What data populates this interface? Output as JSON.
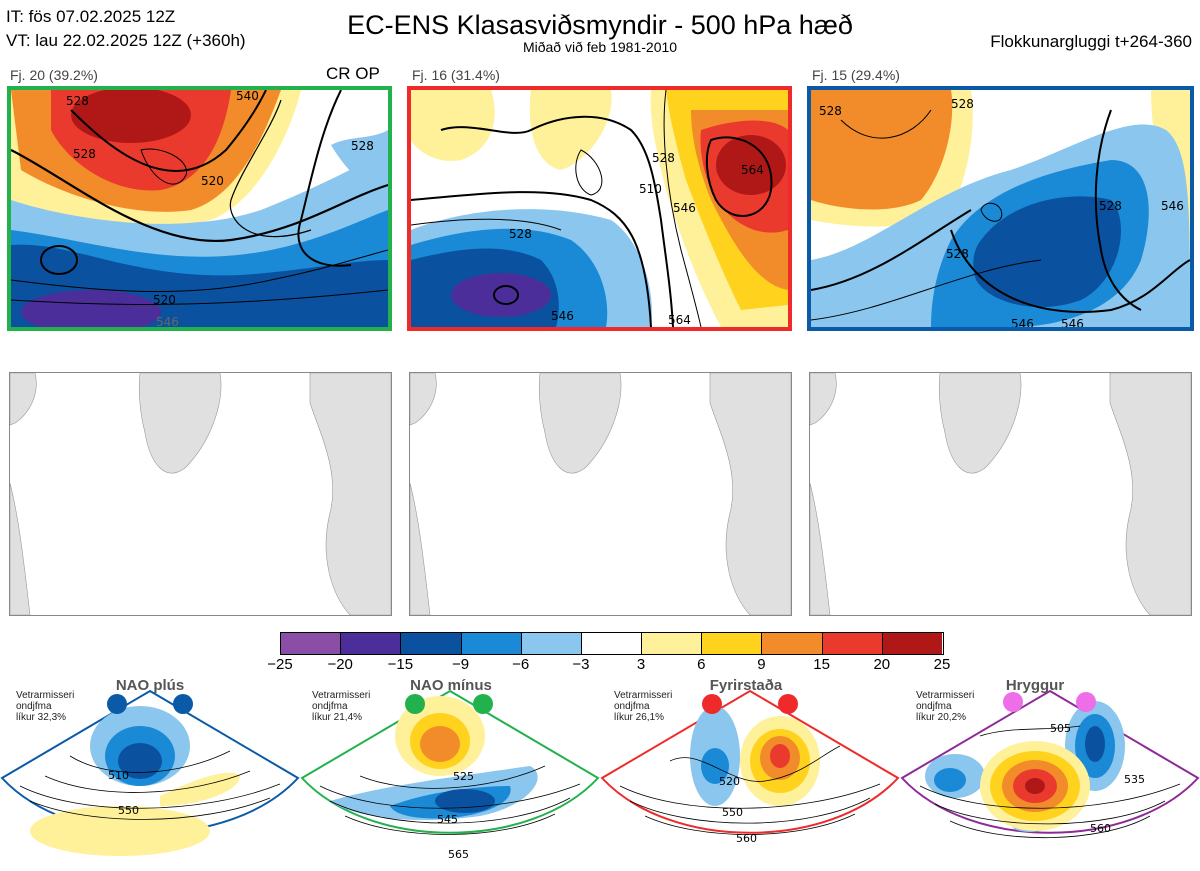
{
  "header": {
    "it": "IT: fös 07.02.2025 12Z",
    "vt": "VT: lau 22.02.2025 12Z  (+360h)",
    "title": "EC-ENS Klasasviðsmyndir - 500 hPa hæð",
    "subtitle": "Miðað við feb 1981-2010",
    "window": "Flokkunargluggi t+264-360"
  },
  "clusters": [
    {
      "label": "Fj. 20 (39.2%)",
      "tag": "CR OP",
      "color": "#22b14c",
      "contours": [
        "528",
        "528",
        "528",
        "520",
        "520",
        "540",
        "546"
      ]
    },
    {
      "label": "Fj. 16 (31.4%)",
      "tag": "",
      "color": "#ee2a2a",
      "contours": [
        "528",
        "510",
        "528",
        "546",
        "546",
        "564",
        "564"
      ]
    },
    {
      "label": "Fj. 15 (29.4%)",
      "tag": "",
      "color": "#0a5aa8",
      "contours": [
        "528",
        "528",
        "528",
        "528",
        "546",
        "546",
        "546"
      ]
    }
  ],
  "colorbar": {
    "ticks": [
      "−25",
      "−20",
      "−15",
      "−9",
      "−6",
      "−3",
      "3",
      "6",
      "9",
      "15",
      "20",
      "25"
    ],
    "colors": [
      "#8a4ea6",
      "#4b2e9a",
      "#0a52a0",
      "#1a8ad6",
      "#8ac6ee",
      "#ffffff",
      "#fff09a",
      "#ffd21e",
      "#f28c2a",
      "#ea3a2e",
      "#b01818"
    ]
  },
  "regimes": [
    {
      "name": "NAO plús",
      "line1": "Vetrarmisseri",
      "line2": "ondjfma",
      "line3": "líkur 32,3%",
      "border": "#0a5aa8",
      "dot": "#0a5aa8",
      "c1": "510",
      "c2": "550"
    },
    {
      "name": "NAO mínus",
      "line1": "Vetrarmisseri",
      "line2": "ondjfma",
      "line3": "líkur 21,4%",
      "border": "#22b14c",
      "dot": "#22b14c",
      "c1": "525",
      "c2": "545",
      "c3": "565"
    },
    {
      "name": "Fyrirstaða",
      "line1": "Vetrarmisseri",
      "line2": "ondjfma",
      "line3": "líkur 26,1%",
      "border": "#ee2a2a",
      "dot": "#ee2a2a",
      "c1": "520",
      "c2": "550",
      "c3": "560"
    },
    {
      "name": "Hryggur",
      "line1": "Vetrarmisseri",
      "line2": "ondjfma",
      "line3": "líkur 20,2%",
      "border": "#8e2a98",
      "dot": "#ee6ee8",
      "c1": "505",
      "c2": "535",
      "c3": "560"
    }
  ]
}
